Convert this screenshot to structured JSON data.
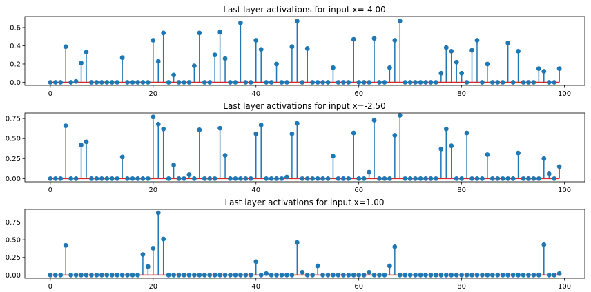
{
  "colors": {
    "stem": "#1f77b4",
    "marker": "#1f77b4",
    "baseline": "#d62728",
    "axes": "#000000",
    "background": "#ffffff"
  },
  "chart_data": [
    {
      "type": "stem",
      "title": "Last layer activations for input x=-4.00",
      "xlabel": "",
      "ylabel": "",
      "xlim": [
        -4.95,
        103.95
      ],
      "ylim": [
        -0.034,
        0.72
      ],
      "xticks": [
        0,
        20,
        40,
        60,
        80,
        100
      ],
      "xtick_labels": [
        "0",
        "20",
        "40",
        "60",
        "80",
        "100"
      ],
      "yticks": [
        0.0,
        0.2,
        0.4,
        0.6
      ],
      "ytick_labels": [
        "0.0",
        "0.2",
        "0.4",
        "0.6"
      ],
      "grid": false,
      "x": [
        0,
        1,
        2,
        3,
        4,
        5,
        6,
        7,
        8,
        9,
        10,
        11,
        12,
        13,
        14,
        15,
        16,
        17,
        18,
        19,
        20,
        21,
        22,
        23,
        24,
        25,
        26,
        27,
        28,
        29,
        30,
        31,
        32,
        33,
        34,
        35,
        36,
        37,
        38,
        39,
        40,
        41,
        42,
        43,
        44,
        45,
        46,
        47,
        48,
        49,
        50,
        51,
        52,
        53,
        54,
        55,
        56,
        57,
        58,
        59,
        60,
        61,
        62,
        63,
        64,
        65,
        66,
        67,
        68,
        69,
        70,
        71,
        72,
        73,
        74,
        75,
        76,
        77,
        78,
        79,
        80,
        81,
        82,
        83,
        84,
        85,
        86,
        87,
        88,
        89,
        90,
        91,
        92,
        93,
        94,
        95,
        96,
        97,
        98,
        99
      ],
      "values": [
        0,
        0,
        0,
        0.39,
        0,
        0.01,
        0.21,
        0.33,
        0,
        0,
        0,
        0,
        0,
        0,
        0.27,
        0,
        0,
        0,
        0,
        0,
        0.46,
        0.23,
        0.54,
        0,
        0.08,
        0,
        0,
        0,
        0.18,
        0.54,
        0,
        0,
        0.3,
        0.55,
        0.26,
        0,
        0,
        0.65,
        0,
        0,
        0.46,
        0.36,
        0,
        0,
        0.2,
        0,
        0,
        0.39,
        0.67,
        0,
        0.37,
        0,
        0,
        0,
        0,
        0.16,
        0,
        0,
        0,
        0.47,
        0,
        0,
        0,
        0.48,
        0,
        0,
        0.16,
        0.46,
        0.67,
        0,
        0,
        0,
        0,
        0,
        0,
        0,
        0.1,
        0.38,
        0.34,
        0.22,
        0.1,
        0,
        0.35,
        0.46,
        0,
        0.2,
        0,
        0,
        0,
        0.43,
        0,
        0.34,
        0,
        0,
        0,
        0.15,
        0.12,
        0,
        0,
        0.15
      ]
    },
    {
      "type": "stem",
      "title": "Last layer activations for input x=-2.50",
      "xlabel": "",
      "ylabel": "",
      "xlim": [
        -4.95,
        103.95
      ],
      "ylim": [
        -0.04,
        0.82
      ],
      "xticks": [
        0,
        20,
        40,
        60,
        80,
        100
      ],
      "xtick_labels": [
        "0",
        "20",
        "40",
        "60",
        "80",
        "100"
      ],
      "yticks": [
        0.0,
        0.25,
        0.5,
        0.75
      ],
      "ytick_labels": [
        "0.00",
        "0.25",
        "0.50",
        "0.75"
      ],
      "grid": false,
      "x": [
        0,
        1,
        2,
        3,
        4,
        5,
        6,
        7,
        8,
        9,
        10,
        11,
        12,
        13,
        14,
        15,
        16,
        17,
        18,
        19,
        20,
        21,
        22,
        23,
        24,
        25,
        26,
        27,
        28,
        29,
        30,
        31,
        32,
        33,
        34,
        35,
        36,
        37,
        38,
        39,
        40,
        41,
        42,
        43,
        44,
        45,
        46,
        47,
        48,
        49,
        50,
        51,
        52,
        53,
        54,
        55,
        56,
        57,
        58,
        59,
        60,
        61,
        62,
        63,
        64,
        65,
        66,
        67,
        68,
        69,
        70,
        71,
        72,
        73,
        74,
        75,
        76,
        77,
        78,
        79,
        80,
        81,
        82,
        83,
        84,
        85,
        86,
        87,
        88,
        89,
        90,
        91,
        92,
        93,
        94,
        95,
        96,
        97,
        98,
        99
      ],
      "values": [
        0,
        0,
        0,
        0.66,
        0,
        0,
        0.42,
        0.46,
        0,
        0,
        0,
        0,
        0,
        0,
        0.27,
        0,
        0,
        0,
        0,
        0,
        0.77,
        0.68,
        0.62,
        0,
        0.17,
        0,
        0,
        0.05,
        0,
        0.61,
        0,
        0,
        0,
        0.63,
        0.29,
        0,
        0,
        0,
        0,
        0,
        0.56,
        0.67,
        0,
        0,
        0,
        0,
        0.02,
        0.56,
        0.69,
        0,
        0,
        0,
        0,
        0,
        0,
        0.28,
        0,
        0,
        0,
        0.57,
        0,
        0,
        0.08,
        0.73,
        0,
        0,
        0,
        0.54,
        0.79,
        0,
        0,
        0,
        0,
        0,
        0,
        0,
        0.37,
        0.62,
        0.41,
        0,
        0,
        0.57,
        0,
        0,
        0,
        0.3,
        0,
        0,
        0,
        0,
        0,
        0.32,
        0,
        0,
        0,
        0,
        0.25,
        0.06,
        0,
        0.15
      ]
    },
    {
      "type": "stem",
      "title": "Last layer activations for input x=1.00",
      "xlabel": "",
      "ylabel": "",
      "xlim": [
        -4.95,
        103.95
      ],
      "ylim": [
        -0.045,
        0.93
      ],
      "xticks": [
        0,
        20,
        40,
        60,
        80,
        100
      ],
      "xtick_labels": [
        "0",
        "20",
        "40",
        "60",
        "80",
        "100"
      ],
      "yticks": [
        0.0,
        0.25,
        0.5,
        0.75
      ],
      "ytick_labels": [
        "0.00",
        "0.25",
        "0.50",
        "0.75"
      ],
      "grid": false,
      "x": [
        0,
        1,
        2,
        3,
        4,
        5,
        6,
        7,
        8,
        9,
        10,
        11,
        12,
        13,
        14,
        15,
        16,
        17,
        18,
        19,
        20,
        21,
        22,
        23,
        24,
        25,
        26,
        27,
        28,
        29,
        30,
        31,
        32,
        33,
        34,
        35,
        36,
        37,
        38,
        39,
        40,
        41,
        42,
        43,
        44,
        45,
        46,
        47,
        48,
        49,
        50,
        51,
        52,
        53,
        54,
        55,
        56,
        57,
        58,
        59,
        60,
        61,
        62,
        63,
        64,
        65,
        66,
        67,
        68,
        69,
        70,
        71,
        72,
        73,
        74,
        75,
        76,
        77,
        78,
        79,
        80,
        81,
        82,
        83,
        84,
        85,
        86,
        87,
        88,
        89,
        90,
        91,
        92,
        93,
        94,
        95,
        96,
        97,
        98,
        99
      ],
      "values": [
        0,
        0,
        0,
        0.42,
        0,
        0,
        0,
        0,
        0,
        0,
        0,
        0,
        0,
        0,
        0,
        0,
        0,
        0,
        0.29,
        0.12,
        0.38,
        0.88,
        0.51,
        0,
        0,
        0,
        0,
        0,
        0,
        0,
        0,
        0,
        0,
        0,
        0,
        0,
        0,
        0,
        0,
        0,
        0.19,
        0,
        0.02,
        0,
        0,
        0,
        0,
        0,
        0.46,
        0.04,
        0,
        0,
        0.13,
        0,
        0,
        0,
        0,
        0,
        0,
        0,
        0,
        0,
        0.04,
        0,
        0,
        0,
        0.13,
        0.4,
        0,
        0,
        0,
        0,
        0,
        0,
        0,
        0,
        0,
        0,
        0,
        0,
        0,
        0,
        0,
        0,
        0,
        0,
        0,
        0,
        0,
        0,
        0,
        0,
        0,
        0,
        0,
        0,
        0.43,
        0,
        0,
        0.02
      ]
    }
  ]
}
